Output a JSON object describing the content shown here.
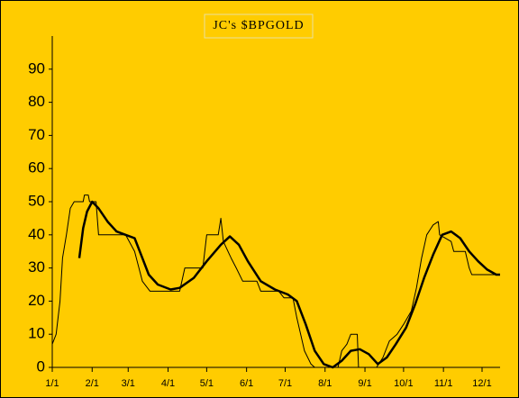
{
  "chart_data": {
    "type": "line",
    "title": "JC's $BPGOLD",
    "xlim": [
      0,
      348
    ],
    "xticks": [
      {
        "value": 0,
        "label": "1/1"
      },
      {
        "value": 31,
        "label": "2/1"
      },
      {
        "value": 59,
        "label": "3/1"
      },
      {
        "value": 90,
        "label": "4/1"
      },
      {
        "value": 120,
        "label": "5/1"
      },
      {
        "value": 151,
        "label": "6/1"
      },
      {
        "value": 181,
        "label": "7/1"
      },
      {
        "value": 212,
        "label": "8/1"
      },
      {
        "value": 243,
        "label": "9/1"
      },
      {
        "value": 273,
        "label": "10/1"
      },
      {
        "value": 304,
        "label": "11/1"
      },
      {
        "value": 334,
        "label": "12/1"
      }
    ],
    "ylim": [
      0,
      100
    ],
    "yticks": [
      0,
      10,
      20,
      30,
      40,
      50,
      60,
      70,
      80,
      90
    ],
    "grid": false,
    "series": [
      {
        "color": "#000000",
        "width": 1,
        "x": [
          0,
          3,
          6,
          8,
          11,
          14,
          17,
          24,
          25,
          28,
          29,
          34,
          36,
          57,
          64,
          70,
          76,
          99,
          103,
          117,
          120,
          129,
          131,
          133,
          139,
          143,
          148,
          159,
          162,
          176,
          180,
          187,
          190,
          196,
          201,
          204,
          222,
          225,
          229,
          232,
          237,
          238,
          252,
          257,
          262,
          268,
          273,
          279,
          283,
          287,
          291,
          296,
          300,
          301,
          310,
          312,
          321,
          324,
          326,
          348
        ],
        "values": [
          7,
          10,
          20,
          33,
          40,
          48,
          50,
          50,
          52,
          52,
          50,
          50,
          40,
          40,
          35,
          26,
          23,
          23,
          30,
          30,
          40,
          40,
          45,
          38,
          33,
          30,
          26,
          26,
          23,
          23,
          21,
          21,
          15,
          5,
          1,
          0,
          0,
          5,
          7,
          10,
          10,
          0,
          0,
          3,
          8,
          10,
          13,
          17,
          24,
          33,
          40,
          43,
          44,
          40,
          38,
          35,
          35,
          30,
          28,
          28
        ]
      },
      {
        "color": "#000000",
        "width": 2.5,
        "x": [
          21,
          24,
          27,
          31,
          36,
          43,
          50,
          57,
          64,
          70,
          75,
          82,
          92,
          99,
          110,
          120,
          131,
          138,
          145,
          152,
          162,
          173,
          183,
          190,
          197,
          204,
          211,
          218,
          225,
          232,
          239,
          246,
          253,
          260,
          267,
          275,
          282,
          289,
          296,
          303,
          310,
          317,
          324,
          331,
          338,
          345,
          348
        ],
        "values": [
          33,
          42,
          47,
          50,
          48,
          44,
          41,
          40,
          39,
          33,
          28,
          25,
          23.5,
          24,
          27,
          32,
          37,
          39.5,
          37,
          32,
          26,
          23.5,
          22,
          20,
          13,
          5,
          1,
          0,
          2,
          5,
          5.5,
          4,
          1,
          3,
          7,
          12,
          19,
          27,
          34,
          40,
          41,
          39,
          35,
          32,
          29.5,
          28,
          28
        ]
      }
    ]
  }
}
